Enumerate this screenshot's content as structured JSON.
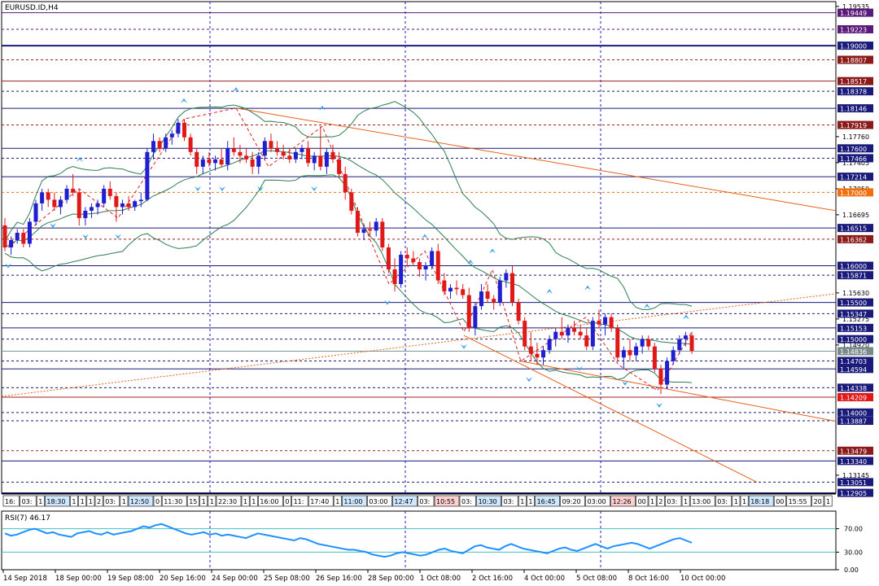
{
  "window": {
    "symbol_label": "EURUSD.ID,H4"
  },
  "colors": {
    "bull": "#1f1fd0",
    "bear": "#e01818",
    "hline_navy": "#1a1a7a",
    "hline_dark_red": "#8b1a1a",
    "hline_purple": "#5a1a7a",
    "trendline": "#e8601a",
    "vgrid": "#2020c0",
    "bollinger": "#2e7d4f",
    "zigzag": "#e02020",
    "arrow": "#3aa0e8",
    "rsi_line": "#1e90ff",
    "rsi_level": "#40c0c0"
  },
  "price_axis": {
    "ticks": [
      "1.19535",
      "1.17760",
      "1.17405",
      "1.17050",
      "1.16695",
      "1.15630",
      "1.15275",
      "1.14920",
      "1.13145"
    ],
    "hline_labels": [
      {
        "value": "1.19449",
        "bg": "#5a1a7a"
      },
      {
        "value": "1.19223",
        "bg": "#5a1a7a"
      },
      {
        "value": "1.19000",
        "bg": "#1a1a7a"
      },
      {
        "value": "1.18807",
        "bg": "#8b1a1a"
      },
      {
        "value": "1.18517",
        "bg": "#8b1a1a"
      },
      {
        "value": "1.18378",
        "bg": "#1a1a7a"
      },
      {
        "value": "1.18146",
        "bg": "#1a1a7a"
      },
      {
        "value": "1.17919",
        "bg": "#8b1a1a"
      },
      {
        "value": "1.17600",
        "bg": "#1a1a7a"
      },
      {
        "value": "1.17466",
        "bg": "#1a1a7a"
      },
      {
        "value": "1.17214",
        "bg": "#1a1a7a"
      },
      {
        "value": "1.17000",
        "bg": "#f07010"
      },
      {
        "value": "1.16515",
        "bg": "#1a1a7a"
      },
      {
        "value": "1.16362",
        "bg": "#8b1a1a"
      },
      {
        "value": "1.16000",
        "bg": "#1a1a7a"
      },
      {
        "value": "1.15871",
        "bg": "#1a1a7a"
      },
      {
        "value": "1.15500",
        "bg": "#1a1a7a"
      },
      {
        "value": "1.15347",
        "bg": "#1a1a7a"
      },
      {
        "value": "1.15153",
        "bg": "#1a1a7a"
      },
      {
        "value": "1.15000",
        "bg": "#1a1a7a"
      },
      {
        "value": "1.14836",
        "bg": "#7a8a8a"
      },
      {
        "value": "1.14703",
        "bg": "#1a1a7a"
      },
      {
        "value": "1.14594",
        "bg": "#1a1a7a"
      },
      {
        "value": "1.14338",
        "bg": "#1a1a7a"
      },
      {
        "value": "1.14209",
        "bg": "#e01818"
      },
      {
        "value": "1.14000",
        "bg": "#1a1a7a"
      },
      {
        "value": "1.13887",
        "bg": "#1a1a7a"
      },
      {
        "value": "1.13479",
        "bg": "#8b1a1a"
      },
      {
        "value": "1.13340",
        "bg": "#1a1a7a"
      },
      {
        "value": "1.13051",
        "bg": "#1a1a7a"
      },
      {
        "value": "1.12905",
        "bg": "#1a1a7a"
      }
    ]
  },
  "time_strip": {
    "labels": [
      "16:",
      "03:",
      "1",
      "18:30",
      "1",
      "1",
      "1",
      "2",
      "03:",
      "1",
      "12:50",
      "0",
      "11:30",
      "15",
      "1",
      "1",
      "22:30",
      "1",
      "1",
      "16:00",
      "0",
      "11:",
      "17:40",
      "1",
      "11:00",
      "03:00",
      "12:47",
      "03:",
      "10:55",
      "03:",
      "10:30",
      "03:",
      "1",
      "1",
      "16:45",
      "09:20",
      "03:00",
      "12:26",
      "00",
      "1",
      "2",
      "03:",
      "1",
      "13:00",
      "03:",
      "1",
      "1",
      "18:18",
      "00",
      "15:55",
      "03:00",
      "20",
      "03",
      "1",
      "1",
      "2",
      "05:30"
    ]
  },
  "rsi": {
    "label": "RSI(7) 46.17",
    "ticks": [
      "70.00",
      "30.00",
      "0.00"
    ]
  },
  "time_axis": {
    "labels": [
      "14 Sep 2018",
      "18 Sep 00:00",
      "19 Sep 08:00",
      "20 Sep 16:00",
      "24 Sep 00:00",
      "25 Sep 08:00",
      "26 Sep 16:00",
      "28 Sep 00:00",
      "1 Oct 08:00",
      "2 Oct 16:00",
      "4 Oct 00:00",
      "5 Oct 08:00",
      "8 Oct 16:00",
      "10 Oct 00:00"
    ]
  },
  "chart_data": {
    "type": "candlestick",
    "title": "EURUSD.ID,H4",
    "ylim": [
      1.129,
      1.196
    ],
    "candles": [
      {
        "o": 1.1655,
        "h": 1.1665,
        "l": 1.162,
        "c": 1.1625
      },
      {
        "o": 1.1625,
        "h": 1.164,
        "l": 1.1615,
        "c": 1.1635
      },
      {
        "o": 1.1635,
        "h": 1.165,
        "l": 1.163,
        "c": 1.1645
      },
      {
        "o": 1.1645,
        "h": 1.165,
        "l": 1.1625,
        "c": 1.163
      },
      {
        "o": 1.163,
        "h": 1.1665,
        "l": 1.1625,
        "c": 1.166
      },
      {
        "o": 1.166,
        "h": 1.169,
        "l": 1.1655,
        "c": 1.1685
      },
      {
        "o": 1.1685,
        "h": 1.1705,
        "l": 1.1675,
        "c": 1.17
      },
      {
        "o": 1.17,
        "h": 1.1705,
        "l": 1.168,
        "c": 1.169
      },
      {
        "o": 1.169,
        "h": 1.17,
        "l": 1.1675,
        "c": 1.168
      },
      {
        "o": 1.168,
        "h": 1.1695,
        "l": 1.167,
        "c": 1.169
      },
      {
        "o": 1.169,
        "h": 1.171,
        "l": 1.1685,
        "c": 1.1705
      },
      {
        "o": 1.1705,
        "h": 1.1725,
        "l": 1.1695,
        "c": 1.17
      },
      {
        "o": 1.17,
        "h": 1.1705,
        "l": 1.1655,
        "c": 1.1665
      },
      {
        "o": 1.1665,
        "h": 1.168,
        "l": 1.1655,
        "c": 1.1675
      },
      {
        "o": 1.1675,
        "h": 1.1685,
        "l": 1.1665,
        "c": 1.168
      },
      {
        "o": 1.168,
        "h": 1.169,
        "l": 1.167,
        "c": 1.1685
      },
      {
        "o": 1.1685,
        "h": 1.171,
        "l": 1.168,
        "c": 1.1705
      },
      {
        "o": 1.1705,
        "h": 1.1715,
        "l": 1.169,
        "c": 1.1695
      },
      {
        "o": 1.1695,
        "h": 1.17,
        "l": 1.166,
        "c": 1.168
      },
      {
        "o": 1.168,
        "h": 1.169,
        "l": 1.167,
        "c": 1.1685
      },
      {
        "o": 1.1685,
        "h": 1.1695,
        "l": 1.1675,
        "c": 1.168
      },
      {
        "o": 1.168,
        "h": 1.169,
        "l": 1.1675,
        "c": 1.1688
      },
      {
        "o": 1.1688,
        "h": 1.17,
        "l": 1.168,
        "c": 1.169
      },
      {
        "o": 1.169,
        "h": 1.176,
        "l": 1.1688,
        "c": 1.1755
      },
      {
        "o": 1.1755,
        "h": 1.178,
        "l": 1.1745,
        "c": 1.177
      },
      {
        "o": 1.177,
        "h": 1.1775,
        "l": 1.1755,
        "c": 1.176
      },
      {
        "o": 1.176,
        "h": 1.178,
        "l": 1.1755,
        "c": 1.1775
      },
      {
        "o": 1.1775,
        "h": 1.1785,
        "l": 1.1765,
        "c": 1.178
      },
      {
        "o": 1.178,
        "h": 1.18,
        "l": 1.1775,
        "c": 1.1795
      },
      {
        "o": 1.1795,
        "h": 1.18,
        "l": 1.177,
        "c": 1.1775
      },
      {
        "o": 1.1775,
        "h": 1.178,
        "l": 1.175,
        "c": 1.1755
      },
      {
        "o": 1.1755,
        "h": 1.176,
        "l": 1.1725,
        "c": 1.1735
      },
      {
        "o": 1.1735,
        "h": 1.175,
        "l": 1.1725,
        "c": 1.1745
      },
      {
        "o": 1.1745,
        "h": 1.1755,
        "l": 1.1735,
        "c": 1.174
      },
      {
        "o": 1.174,
        "h": 1.175,
        "l": 1.173,
        "c": 1.1745
      },
      {
        "o": 1.1745,
        "h": 1.176,
        "l": 1.1735,
        "c": 1.1738
      },
      {
        "o": 1.1738,
        "h": 1.177,
        "l": 1.173,
        "c": 1.176
      },
      {
        "o": 1.176,
        "h": 1.1775,
        "l": 1.175,
        "c": 1.1755
      },
      {
        "o": 1.1755,
        "h": 1.1765,
        "l": 1.174,
        "c": 1.175
      },
      {
        "o": 1.175,
        "h": 1.176,
        "l": 1.174,
        "c": 1.1745
      },
      {
        "o": 1.1745,
        "h": 1.1755,
        "l": 1.1725,
        "c": 1.1735
      },
      {
        "o": 1.1735,
        "h": 1.1755,
        "l": 1.1725,
        "c": 1.175
      },
      {
        "o": 1.175,
        "h": 1.1775,
        "l": 1.1745,
        "c": 1.177
      },
      {
        "o": 1.177,
        "h": 1.178,
        "l": 1.1755,
        "c": 1.176
      },
      {
        "o": 1.176,
        "h": 1.177,
        "l": 1.175,
        "c": 1.1755
      },
      {
        "o": 1.1755,
        "h": 1.1765,
        "l": 1.1745,
        "c": 1.175
      },
      {
        "o": 1.175,
        "h": 1.176,
        "l": 1.174,
        "c": 1.1745
      },
      {
        "o": 1.1745,
        "h": 1.176,
        "l": 1.174,
        "c": 1.1755
      },
      {
        "o": 1.1755,
        "h": 1.1765,
        "l": 1.1745,
        "c": 1.176
      },
      {
        "o": 1.176,
        "h": 1.177,
        "l": 1.1735,
        "c": 1.174
      },
      {
        "o": 1.174,
        "h": 1.1755,
        "l": 1.173,
        "c": 1.175
      },
      {
        "o": 1.175,
        "h": 1.179,
        "l": 1.173,
        "c": 1.1735
      },
      {
        "o": 1.1735,
        "h": 1.176,
        "l": 1.1725,
        "c": 1.1755
      },
      {
        "o": 1.1755,
        "h": 1.1765,
        "l": 1.174,
        "c": 1.1745
      },
      {
        "o": 1.1745,
        "h": 1.1755,
        "l": 1.172,
        "c": 1.1725
      },
      {
        "o": 1.1725,
        "h": 1.1735,
        "l": 1.169,
        "c": 1.17
      },
      {
        "o": 1.17,
        "h": 1.1705,
        "l": 1.167,
        "c": 1.1675
      },
      {
        "o": 1.1675,
        "h": 1.168,
        "l": 1.164,
        "c": 1.1645
      },
      {
        "o": 1.1645,
        "h": 1.1655,
        "l": 1.1635,
        "c": 1.165
      },
      {
        "o": 1.165,
        "h": 1.166,
        "l": 1.164,
        "c": 1.1648
      },
      {
        "o": 1.1648,
        "h": 1.1665,
        "l": 1.164,
        "c": 1.166
      },
      {
        "o": 1.166,
        "h": 1.1665,
        "l": 1.162,
        "c": 1.1625
      },
      {
        "o": 1.1625,
        "h": 1.163,
        "l": 1.159,
        "c": 1.1595
      },
      {
        "o": 1.1595,
        "h": 1.161,
        "l": 1.1565,
        "c": 1.1575
      },
      {
        "o": 1.1575,
        "h": 1.162,
        "l": 1.157,
        "c": 1.1615
      },
      {
        "o": 1.1615,
        "h": 1.1625,
        "l": 1.16,
        "c": 1.161
      },
      {
        "o": 1.161,
        "h": 1.162,
        "l": 1.16,
        "c": 1.1605
      },
      {
        "o": 1.1605,
        "h": 1.161,
        "l": 1.1585,
        "c": 1.1595
      },
      {
        "o": 1.1595,
        "h": 1.1605,
        "l": 1.158,
        "c": 1.16
      },
      {
        "o": 1.16,
        "h": 1.1625,
        "l": 1.1595,
        "c": 1.162
      },
      {
        "o": 1.162,
        "h": 1.163,
        "l": 1.1575,
        "c": 1.158
      },
      {
        "o": 1.158,
        "h": 1.159,
        "l": 1.156,
        "c": 1.1565
      },
      {
        "o": 1.1565,
        "h": 1.1575,
        "l": 1.1555,
        "c": 1.157
      },
      {
        "o": 1.157,
        "h": 1.158,
        "l": 1.156,
        "c": 1.1568
      },
      {
        "o": 1.1568,
        "h": 1.1575,
        "l": 1.1555,
        "c": 1.156
      },
      {
        "o": 1.156,
        "h": 1.157,
        "l": 1.151,
        "c": 1.1515
      },
      {
        "o": 1.1515,
        "h": 1.155,
        "l": 1.1505,
        "c": 1.1545
      },
      {
        "o": 1.1545,
        "h": 1.1575,
        "l": 1.154,
        "c": 1.1565
      },
      {
        "o": 1.1565,
        "h": 1.1575,
        "l": 1.155,
        "c": 1.1555
      },
      {
        "o": 1.1555,
        "h": 1.156,
        "l": 1.154,
        "c": 1.155
      },
      {
        "o": 1.155,
        "h": 1.1585,
        "l": 1.1545,
        "c": 1.158
      },
      {
        "o": 1.158,
        "h": 1.1595,
        "l": 1.157,
        "c": 1.159
      },
      {
        "o": 1.159,
        "h": 1.16,
        "l": 1.1545,
        "c": 1.155
      },
      {
        "o": 1.155,
        "h": 1.1555,
        "l": 1.152,
        "c": 1.1525
      },
      {
        "o": 1.1525,
        "h": 1.153,
        "l": 1.1485,
        "c": 1.149
      },
      {
        "o": 1.149,
        "h": 1.151,
        "l": 1.147,
        "c": 1.148
      },
      {
        "o": 1.148,
        "h": 1.1495,
        "l": 1.1465,
        "c": 1.1475
      },
      {
        "o": 1.1475,
        "h": 1.149,
        "l": 1.1465,
        "c": 1.1485
      },
      {
        "o": 1.1485,
        "h": 1.1505,
        "l": 1.148,
        "c": 1.15
      },
      {
        "o": 1.15,
        "h": 1.1515,
        "l": 1.149,
        "c": 1.151
      },
      {
        "o": 1.151,
        "h": 1.153,
        "l": 1.15,
        "c": 1.1505
      },
      {
        "o": 1.1505,
        "h": 1.152,
        "l": 1.1495,
        "c": 1.1515
      },
      {
        "o": 1.1515,
        "h": 1.1525,
        "l": 1.1505,
        "c": 1.151
      },
      {
        "o": 1.151,
        "h": 1.152,
        "l": 1.15,
        "c": 1.1505
      },
      {
        "o": 1.1505,
        "h": 1.1515,
        "l": 1.1485,
        "c": 1.149
      },
      {
        "o": 1.149,
        "h": 1.153,
        "l": 1.1485,
        "c": 1.1525
      },
      {
        "o": 1.1525,
        "h": 1.154,
        "l": 1.1515,
        "c": 1.152
      },
      {
        "o": 1.152,
        "h": 1.1535,
        "l": 1.1505,
        "c": 1.153
      },
      {
        "o": 1.153,
        "h": 1.1535,
        "l": 1.151,
        "c": 1.1515
      },
      {
        "o": 1.1515,
        "h": 1.152,
        "l": 1.147,
        "c": 1.1475
      },
      {
        "o": 1.1475,
        "h": 1.149,
        "l": 1.146,
        "c": 1.1485
      },
      {
        "o": 1.1485,
        "h": 1.15,
        "l": 1.147,
        "c": 1.1478
      },
      {
        "o": 1.1478,
        "h": 1.1495,
        "l": 1.147,
        "c": 1.149
      },
      {
        "o": 1.149,
        "h": 1.1505,
        "l": 1.148,
        "c": 1.15
      },
      {
        "o": 1.15,
        "h": 1.1505,
        "l": 1.1485,
        "c": 1.149
      },
      {
        "o": 1.149,
        "h": 1.1495,
        "l": 1.1455,
        "c": 1.146
      },
      {
        "o": 1.146,
        "h": 1.1465,
        "l": 1.1425,
        "c": 1.1438
      },
      {
        "o": 1.1438,
        "h": 1.1475,
        "l": 1.1432,
        "c": 1.147
      },
      {
        "o": 1.147,
        "h": 1.149,
        "l": 1.1465,
        "c": 1.1485
      },
      {
        "o": 1.1485,
        "h": 1.1505,
        "l": 1.148,
        "c": 1.15
      },
      {
        "o": 1.15,
        "h": 1.151,
        "l": 1.149,
        "c": 1.1505
      },
      {
        "o": 1.1505,
        "h": 1.151,
        "l": 1.148,
        "c": 1.1484
      }
    ],
    "horizontal_levels": [
      "1.19449",
      "1.19223",
      "1.19000",
      "1.18807",
      "1.18517",
      "1.18378",
      "1.18146",
      "1.17919",
      "1.17600",
      "1.17466",
      "1.17214",
      "1.17000",
      "1.16515",
      "1.16362",
      "1.16000",
      "1.15871",
      "1.15500",
      "1.15347",
      "1.15153",
      "1.15000",
      "1.14836",
      "1.14703",
      "1.14594",
      "1.14338",
      "1.14209",
      "1.14000",
      "1.13887",
      "1.13479",
      "1.13340",
      "1.13051",
      "1.12905"
    ],
    "rsi_series": [
      62,
      58,
      60,
      64,
      68,
      70,
      66,
      62,
      64,
      60,
      58,
      56,
      62,
      64,
      66,
      62,
      60,
      64,
      60,
      62,
      64,
      66,
      70,
      74,
      72,
      76,
      78,
      74,
      70,
      66,
      62,
      60,
      62,
      64,
      60,
      62,
      58,
      60,
      58,
      56,
      54,
      58,
      62,
      60,
      58,
      56,
      54,
      52,
      50,
      54,
      52,
      48,
      44,
      42,
      40,
      38,
      36,
      34,
      34,
      32,
      30,
      26,
      24,
      22,
      24,
      28,
      30,
      28,
      26,
      24,
      26,
      30,
      34,
      36,
      32,
      30,
      28,
      34,
      40,
      42,
      38,
      36,
      34,
      40,
      44,
      40,
      36,
      34,
      32,
      30,
      28,
      32,
      36,
      38,
      34,
      32,
      36,
      40,
      44,
      40,
      36,
      40,
      42,
      44,
      46,
      44,
      40,
      36,
      40,
      44,
      48,
      52,
      54,
      50,
      46
    ]
  }
}
